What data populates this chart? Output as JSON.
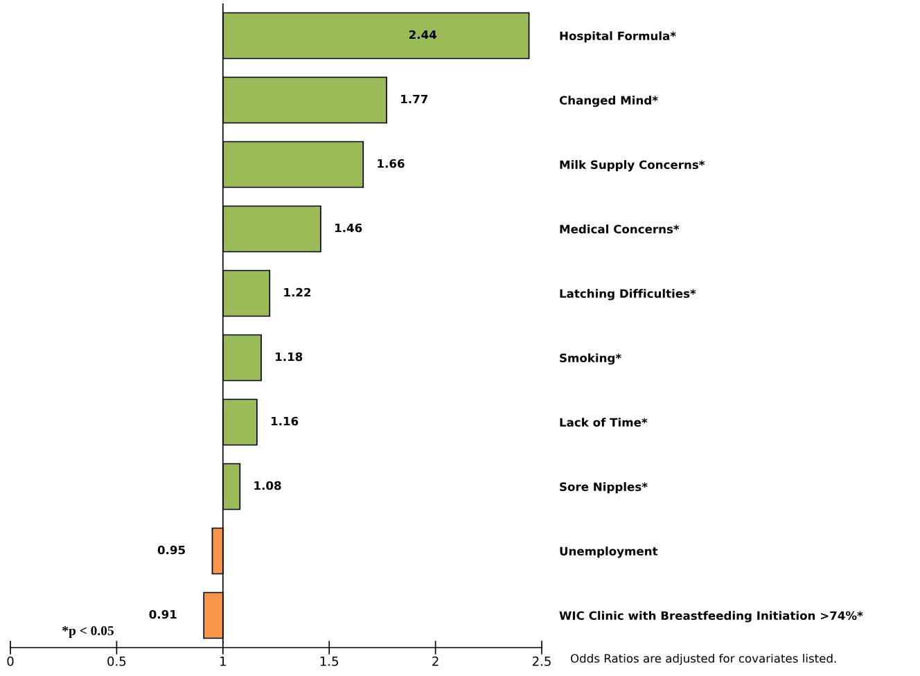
{
  "chart_data": {
    "type": "bar",
    "orientation": "horizontal",
    "categories": [
      "Hospital Formula*",
      "Changed Mind*",
      "Milk Supply Concerns*",
      "Medical Concerns*",
      "Latching Difficulties*",
      "Smoking*",
      "Lack of Time*",
      "Sore Nipples*",
      "Unemployment",
      "WIC Clinic with Breastfeeding Initiation >74%*"
    ],
    "base": [
      1,
      1,
      1,
      1,
      1,
      1,
      1,
      1,
      1,
      1
    ],
    "values": [
      1.44,
      0.77,
      0.66,
      0.46,
      0.22,
      0.18,
      0.16,
      0.08,
      -0.05,
      -0.09
    ],
    "value_labels": [
      "2.44",
      "1.77",
      "1.66",
      "1.46",
      "1.22",
      "1.18",
      "1.16",
      "1.08",
      "0.95",
      "0.91"
    ],
    "colors": [
      "#9bbb59",
      "#9bbb59",
      "#9bbb59",
      "#9bbb59",
      "#9bbb59",
      "#9bbb59",
      "#9bbb59",
      "#9bbb59",
      "#f79646",
      "#f79646"
    ],
    "xlim": [
      0,
      2.5
    ],
    "xticks": [
      0,
      0.5,
      1,
      1.5,
      2,
      2.5
    ],
    "ref_lines": [
      {
        "axis": "x",
        "value": 1,
        "color": "#000000"
      }
    ],
    "grid": false,
    "legend": false,
    "annotations": [
      "*p < 0.05",
      "Odds Ratios are adjusted for covariates listed."
    ]
  }
}
